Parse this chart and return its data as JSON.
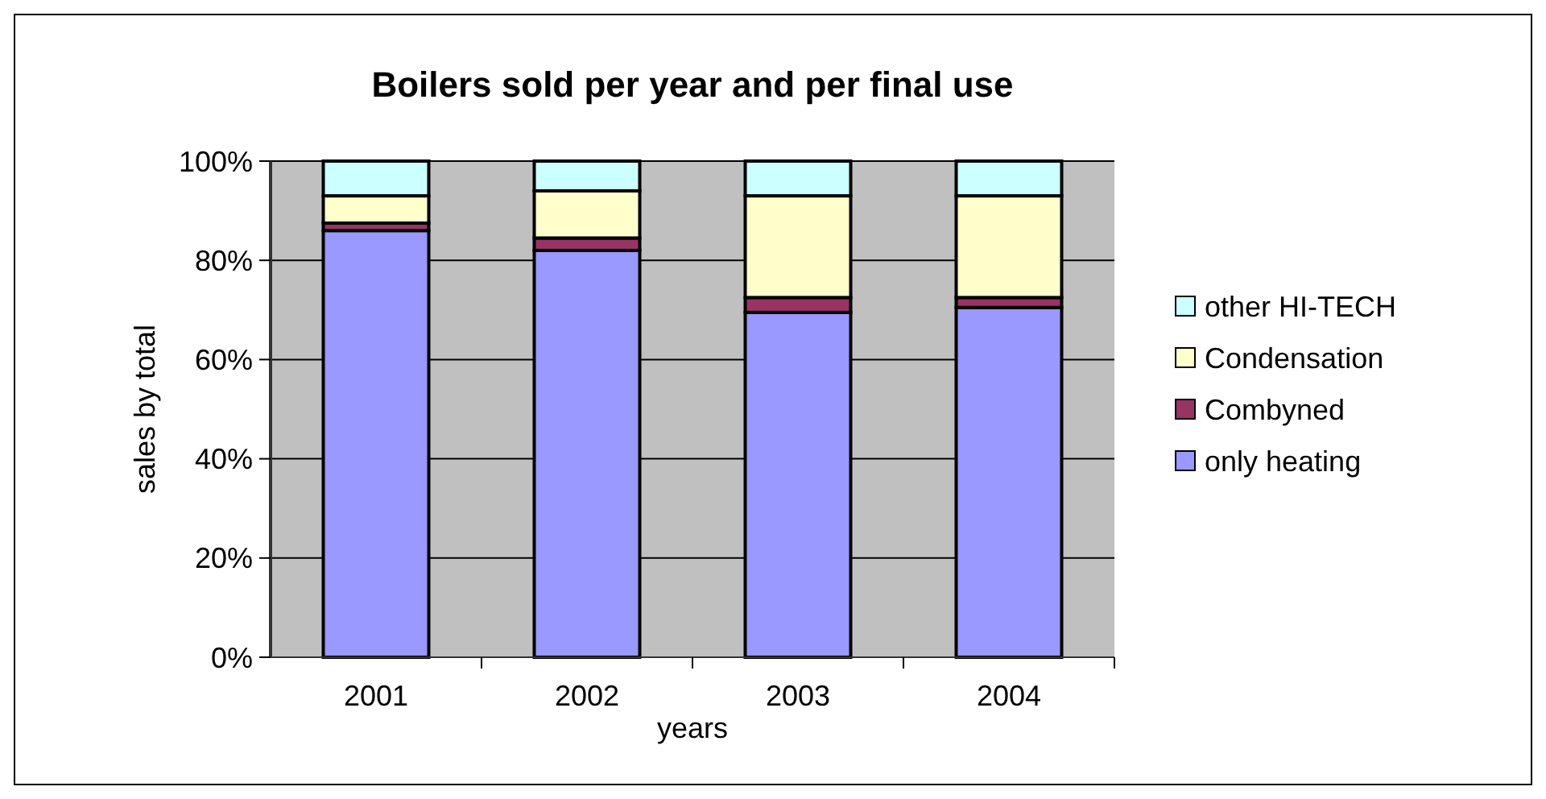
{
  "chart_data": {
    "type": "bar",
    "title": "Boilers sold per year and per final use",
    "xlabel": "years",
    "ylabel": "sales by total",
    "categories": [
      "2001",
      "2002",
      "2003",
      "2004"
    ],
    "stacked": true,
    "ylim": [
      0,
      100
    ],
    "yticks": [
      {
        "value": 0,
        "label": "0%"
      },
      {
        "value": 20,
        "label": "20%"
      },
      {
        "value": 40,
        "label": "40%"
      },
      {
        "value": 60,
        "label": "60%"
      },
      {
        "value": 80,
        "label": "80%"
      },
      {
        "value": 100,
        "label": "100%"
      }
    ],
    "grid": "y",
    "legend": "right",
    "series": [
      {
        "name": "only heating",
        "color": "#9999ff",
        "values": [
          86,
          82,
          69.5,
          70.5
        ]
      },
      {
        "name": "Combyned",
        "color": "#993366",
        "values": [
          1.5,
          2.5,
          3,
          2
        ]
      },
      {
        "name": "Condensation",
        "color": "#ffffcc",
        "values": [
          5.5,
          9.5,
          20.5,
          20.5
        ]
      },
      {
        "name": "other HI-TECH",
        "color": "#ccffff",
        "values": [
          7,
          6,
          7,
          7
        ]
      }
    ]
  }
}
